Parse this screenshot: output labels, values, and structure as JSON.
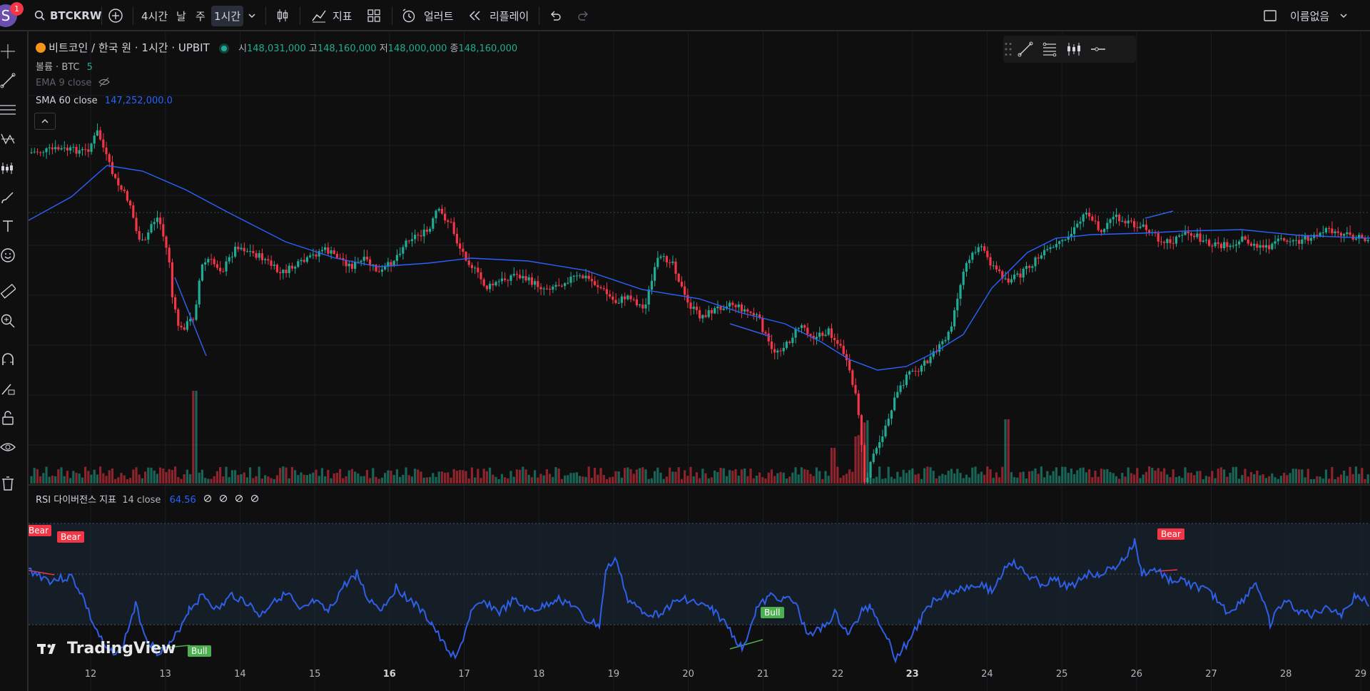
{
  "topbar": {
    "avatar_letter": "S",
    "notification_count": "1",
    "symbol": "BTCKRW",
    "timeframes": [
      "4시간",
      "날",
      "주",
      "1시간"
    ],
    "indicators_label": "지표",
    "alert_label": "얼러트",
    "replay_label": "리플레이",
    "layout_name": "이름없음"
  },
  "legend": {
    "title": "비트코인 / 한국 원 · 1시간 · UPBIT",
    "open_label": "시",
    "open": "148,031,000",
    "high_label": "고",
    "high": "148,160,000",
    "low_label": "저",
    "low": "148,000,000",
    "close_label": "종",
    "close": "148,160,000",
    "volume_label": "볼륨 · BTC",
    "volume_value": "5",
    "ema_label": "EMA 9 close",
    "sma_label": "SMA 60 close",
    "sma_value": "147,252,000.0"
  },
  "rsi": {
    "label": "RSI 다이버전스 지표",
    "params": "14 close",
    "value": "64.56",
    "tags": [
      "Bear",
      "Bear",
      "Bull",
      "Bull",
      "Bear"
    ]
  },
  "x_axis": [
    "12",
    "13",
    "14",
    "15",
    "16",
    "17",
    "18",
    "19",
    "20",
    "21",
    "22",
    "23",
    "24",
    "25",
    "26",
    "27",
    "28",
    "29"
  ],
  "x_axis_bold": [
    "16",
    "23"
  ],
  "branding": "TradingView",
  "colors": {
    "up": "#22ab94",
    "down": "#f23645",
    "sma": "#2962ff",
    "rsi": "#2f5fe8",
    "background": "#0f0f0f"
  }
}
